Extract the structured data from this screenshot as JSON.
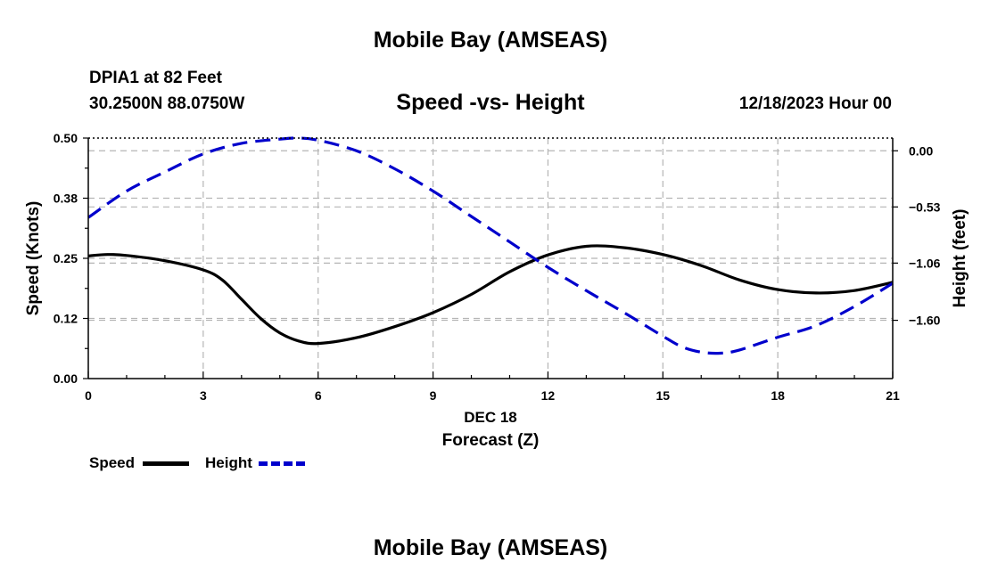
{
  "header": {
    "title": "Mobile Bay (AMSEAS)",
    "station": "DPIA1 at 82 Feet",
    "coords": "30.2500N  88.0750W",
    "date": "12/18/2023 Hour 00",
    "footer_title": "Mobile Bay (AMSEAS)"
  },
  "chart_data": {
    "type": "line",
    "title": "Speed -vs- Height",
    "xlabel_date": "DEC 18",
    "xlabel": "Forecast (Z)",
    "ylabel_left": "Speed (Knots)",
    "ylabel_right": "Height (feet)",
    "xlim": [
      0,
      21
    ],
    "ylim_left": [
      0,
      0.5
    ],
    "ylim_right": [
      -2.15,
      0.12
    ],
    "x_ticks": [
      0,
      3,
      6,
      9,
      12,
      15,
      18,
      21
    ],
    "x_tick_labels": [
      "0",
      "3",
      "6",
      "9",
      "12",
      "15",
      "18",
      "21"
    ],
    "y_left_ticks": [
      0,
      0.125,
      0.25,
      0.375,
      0.5
    ],
    "y_left_tick_labels": [
      "0.00",
      "0.12",
      "0.25",
      "0.38",
      "0.50"
    ],
    "y_right_ticks": [
      0.0,
      -0.53,
      -1.06,
      -1.6
    ],
    "y_right_tick_labels": [
      "0.00",
      "−0.53",
      "−1.06",
      "−1.60"
    ],
    "grid": true,
    "series": [
      {
        "name": "Speed",
        "axis": "left",
        "color": "#000000",
        "style": "solid",
        "x": [
          0,
          0.5,
          1,
          2,
          3,
          3.5,
          4,
          4.5,
          5,
          5.5,
          6,
          7,
          8,
          9,
          10,
          11,
          12,
          13,
          14,
          15,
          16,
          17,
          18,
          19,
          20,
          21
        ],
        "values": [
          0.255,
          0.258,
          0.256,
          0.245,
          0.226,
          0.205,
          0.165,
          0.125,
          0.095,
          0.078,
          0.073,
          0.085,
          0.108,
          0.137,
          0.175,
          0.222,
          0.257,
          0.275,
          0.272,
          0.258,
          0.235,
          0.205,
          0.185,
          0.178,
          0.183,
          0.2
        ]
      },
      {
        "name": "Height",
        "axis": "right",
        "color": "#0000cc",
        "style": "dashed",
        "x": [
          0,
          1,
          2,
          3,
          4,
          5,
          5.5,
          6,
          7,
          8,
          9,
          10,
          11,
          12,
          13,
          14,
          15,
          15.5,
          16,
          16.5,
          17,
          18,
          19,
          20,
          21
        ],
        "values": [
          -0.63,
          -0.38,
          -0.2,
          -0.03,
          0.07,
          0.11,
          0.12,
          0.1,
          0.0,
          -0.17,
          -0.38,
          -0.62,
          -0.86,
          -1.1,
          -1.32,
          -1.53,
          -1.75,
          -1.85,
          -1.9,
          -1.91,
          -1.88,
          -1.76,
          -1.65,
          -1.47,
          -1.25
        ]
      }
    ],
    "legend": [
      {
        "label": "Speed",
        "color": "#000000",
        "style": "solid"
      },
      {
        "label": "Height",
        "color": "#0000cc",
        "style": "dashed"
      }
    ]
  }
}
